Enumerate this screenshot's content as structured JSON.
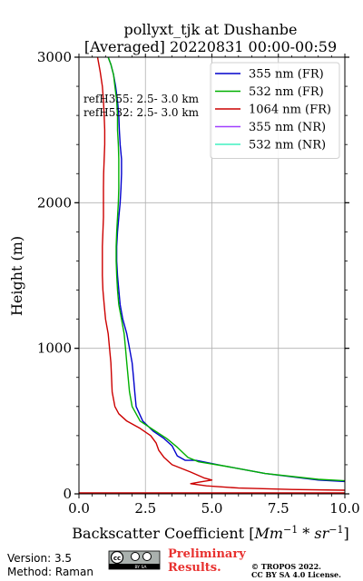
{
  "chart_data": {
    "type": "line",
    "title": [
      "pollyxt_tjk at Dushanbe",
      "[Averaged] 20220831 00:00-00:59"
    ],
    "xlabel_prefix": "Backscatter Coefficient [",
    "xlabel_math": "Mm",
    "xlabel_exp1": "−1",
    "xlabel_mid": " * ",
    "xlabel_math2": "sr",
    "xlabel_exp2": "−1",
    "xlabel_suffix": "]",
    "ylabel": "Height (m)",
    "xlim": [
      0,
      10
    ],
    "ylim": [
      0,
      3000
    ],
    "xticks": [
      0,
      2.5,
      5,
      7.5,
      10
    ],
    "xtick_labels": [
      "0.0",
      "2.5",
      "5.0",
      "7.5",
      "10.0"
    ],
    "yticks": [
      0,
      1000,
      2000,
      3000
    ],
    "ytick_labels": [
      "0",
      "1000",
      "2000",
      "3000"
    ],
    "grid": true,
    "legend_position": "top-right",
    "annotations": [
      "refH355:  2.5- 3.0 km",
      "refH532:  2.5- 3.0 km"
    ],
    "series": [
      {
        "name": "355 nm (FR)",
        "color": "#0000cc",
        "points": [
          [
            1.1,
            3000
          ],
          [
            1.2,
            2950
          ],
          [
            1.3,
            2880
          ],
          [
            1.38,
            2800
          ],
          [
            1.45,
            2700
          ],
          [
            1.5,
            2600
          ],
          [
            1.52,
            2500
          ],
          [
            1.55,
            2400
          ],
          [
            1.6,
            2300
          ],
          [
            1.6,
            2200
          ],
          [
            1.58,
            2100
          ],
          [
            1.55,
            2000
          ],
          [
            1.5,
            1900
          ],
          [
            1.45,
            1800
          ],
          [
            1.42,
            1700
          ],
          [
            1.42,
            1600
          ],
          [
            1.45,
            1500
          ],
          [
            1.5,
            1400
          ],
          [
            1.55,
            1300
          ],
          [
            1.65,
            1200
          ],
          [
            1.8,
            1100
          ],
          [
            1.9,
            1000
          ],
          [
            2.0,
            900
          ],
          [
            2.05,
            800
          ],
          [
            2.1,
            700
          ],
          [
            2.15,
            600
          ],
          [
            2.4,
            500
          ],
          [
            2.8,
            430
          ],
          [
            3.2,
            380
          ],
          [
            3.5,
            330
          ],
          [
            3.7,
            260
          ],
          [
            4.0,
            230
          ],
          [
            4.4,
            230
          ],
          [
            5.5,
            190
          ],
          [
            7.0,
            140
          ],
          [
            9.0,
            95
          ],
          [
            10.0,
            85
          ]
        ]
      },
      {
        "name": "532 nm (FR)",
        "color": "#00b000",
        "points": [
          [
            1.1,
            3000
          ],
          [
            1.2,
            2950
          ],
          [
            1.3,
            2880
          ],
          [
            1.35,
            2800
          ],
          [
            1.42,
            2700
          ],
          [
            1.45,
            2600
          ],
          [
            1.45,
            2500
          ],
          [
            1.48,
            2400
          ],
          [
            1.5,
            2300
          ],
          [
            1.5,
            2200
          ],
          [
            1.5,
            2100
          ],
          [
            1.48,
            2000
          ],
          [
            1.45,
            1900
          ],
          [
            1.42,
            1800
          ],
          [
            1.4,
            1700
          ],
          [
            1.4,
            1600
          ],
          [
            1.42,
            1500
          ],
          [
            1.45,
            1400
          ],
          [
            1.5,
            1300
          ],
          [
            1.6,
            1200
          ],
          [
            1.7,
            1100
          ],
          [
            1.75,
            1000
          ],
          [
            1.8,
            900
          ],
          [
            1.85,
            800
          ],
          [
            1.9,
            700
          ],
          [
            2.0,
            600
          ],
          [
            2.3,
            500
          ],
          [
            2.8,
            440
          ],
          [
            3.3,
            380
          ],
          [
            3.7,
            320
          ],
          [
            4.1,
            250
          ],
          [
            4.5,
            220
          ],
          [
            5.5,
            190
          ],
          [
            7.0,
            140
          ],
          [
            9.0,
            100
          ],
          [
            10.0,
            90
          ]
        ]
      },
      {
        "name": "1064 nm (FR)",
        "color": "#cc0000",
        "points": [
          [
            0.7,
            3000
          ],
          [
            0.8,
            2900
          ],
          [
            0.88,
            2800
          ],
          [
            0.92,
            2700
          ],
          [
            0.95,
            2600
          ],
          [
            0.97,
            2500
          ],
          [
            0.97,
            2400
          ],
          [
            0.95,
            2300
          ],
          [
            0.93,
            2200
          ],
          [
            0.92,
            2100
          ],
          [
            0.92,
            2000
          ],
          [
            0.92,
            1900
          ],
          [
            0.9,
            1800
          ],
          [
            0.88,
            1700
          ],
          [
            0.88,
            1600
          ],
          [
            0.88,
            1500
          ],
          [
            0.9,
            1400
          ],
          [
            0.95,
            1300
          ],
          [
            1.0,
            1200
          ],
          [
            1.1,
            1100
          ],
          [
            1.15,
            1000
          ],
          [
            1.2,
            900
          ],
          [
            1.25,
            700
          ],
          [
            1.35,
            600
          ],
          [
            1.5,
            550
          ],
          [
            1.8,
            500
          ],
          [
            2.3,
            450
          ],
          [
            2.7,
            400
          ],
          [
            2.9,
            350
          ],
          [
            3.0,
            300
          ],
          [
            3.2,
            250
          ],
          [
            3.5,
            200
          ],
          [
            4.2,
            150
          ],
          [
            4.7,
            110
          ],
          [
            5.0,
            95
          ],
          [
            4.5,
            80
          ],
          [
            4.2,
            70
          ],
          [
            4.8,
            55
          ],
          [
            6.0,
            40
          ],
          [
            8.0,
            30
          ],
          [
            10.0,
            25
          ]
        ]
      },
      {
        "name": "355 nm (NR)",
        "color": "#a040ff",
        "points": []
      },
      {
        "name": "532 nm (NR)",
        "color": "#40f0c0",
        "points": []
      }
    ],
    "baseline_color": "#cc0000"
  },
  "footer": {
    "version": "Version: 3.5",
    "method": "Method: Raman",
    "preliminary_line1": "Preliminary",
    "preliminary_line2": "Results.",
    "copyright_line1": "© TROPOS 2022.",
    "copyright_line2": "CC BY SA 4.0 License.",
    "license_badge_text": "BY SA"
  }
}
